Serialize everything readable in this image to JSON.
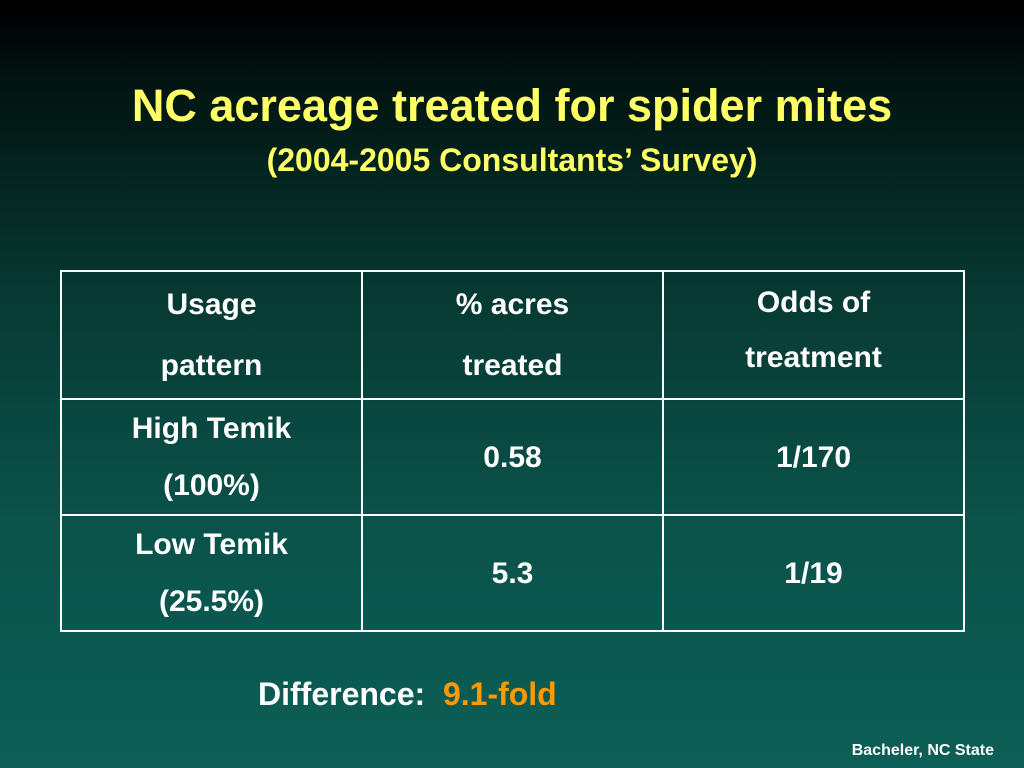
{
  "slide": {
    "title": "NC acreage treated for spider mites",
    "subtitle": "(2004-2005 Consultants’ Survey)"
  },
  "table": {
    "headers": [
      [
        "Usage",
        "pattern"
      ],
      [
        "% acres",
        "treated"
      ],
      [
        "Odds of",
        "treatment"
      ]
    ],
    "rows": [
      {
        "usage": [
          "High Temik",
          "(100%)"
        ],
        "acres_treated": "0.58",
        "odds": "1/170"
      },
      {
        "usage": [
          "Low Temik",
          "(25.5%)"
        ],
        "acres_treated": "5.3",
        "odds": "1/19"
      }
    ]
  },
  "summary": {
    "label": "Difference:",
    "value": "9.1-fold"
  },
  "credit": "Bacheler, NC State",
  "colors": {
    "title": "#ffff66",
    "text": "#ffffff",
    "highlight": "#ff9900",
    "background_top": "#000000",
    "background_bottom": "#0c5f56"
  }
}
